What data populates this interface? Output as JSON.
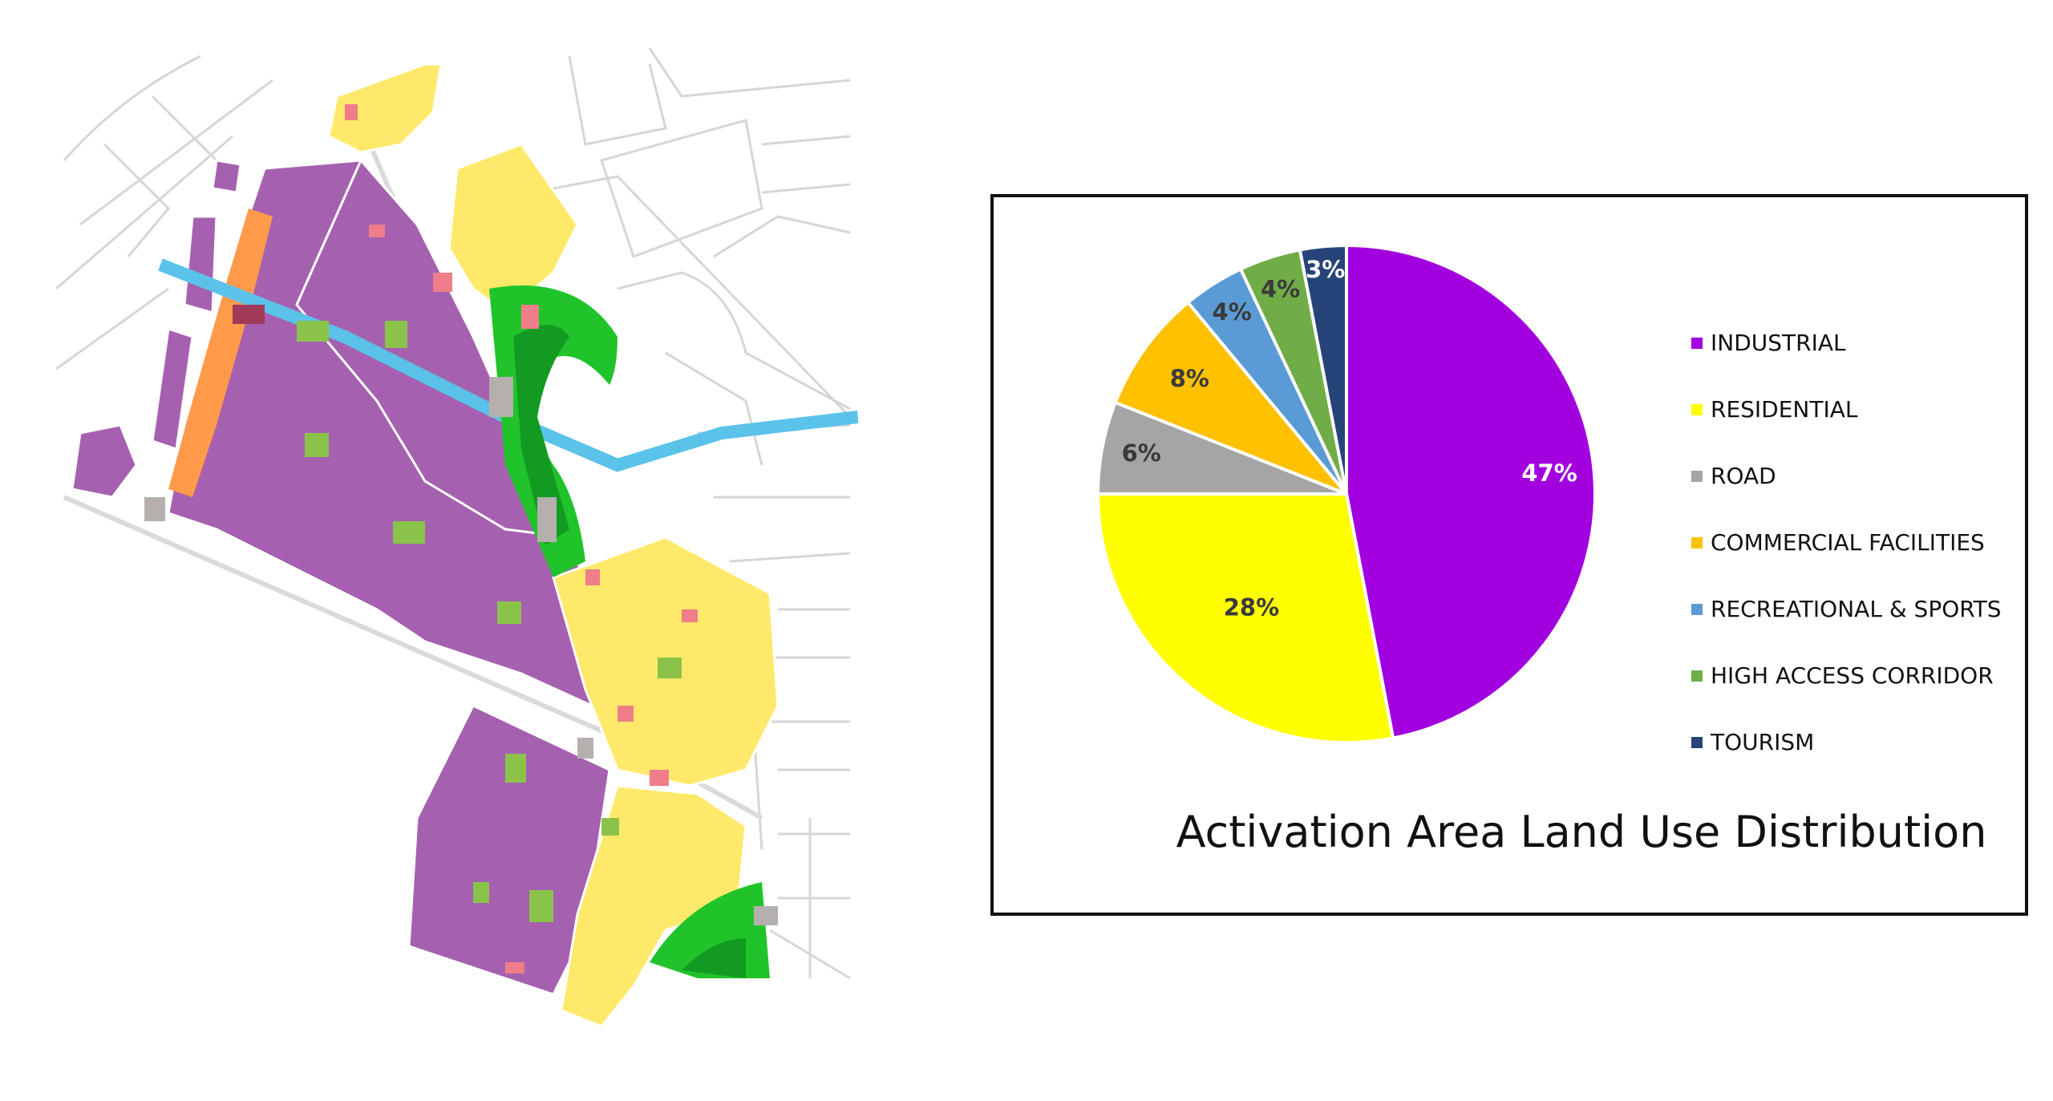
{
  "colors": {
    "industrial": "#A200DE",
    "residential": "#FFFF00",
    "road": "#A5A5A5",
    "commercial": "#FFC000",
    "recreational": "#5B9BD5",
    "corridor": "#70AD47",
    "tourism": "#264478",
    "map_industrial": "#A660B0",
    "map_residential": "#FFE96A",
    "map_commercial": "#FF9A4A",
    "map_park": "#20C42A",
    "map_park_dark": "#129A22",
    "map_river": "#5BC2EA",
    "map_green_patch": "#8BC34A",
    "map_pink_patch": "#F07D8A",
    "map_gray_patch": "#B5B0AE",
    "map_street": "#D6D6D6"
  },
  "map": {
    "label": "Activation Area land use map"
  },
  "chart_data": {
    "type": "pie",
    "title": "Activation Area Land Use Distribution",
    "labels": [
      "INDUSTRIAL",
      "RESIDENTIAL",
      "ROAD",
      "COMMERCIAL FACILITIES",
      "RECREATIONAL & SPORTS",
      "HIGH ACCESS CORRIDOR",
      "TOURISM"
    ],
    "values": [
      47,
      28,
      6,
      8,
      4,
      4,
      3
    ],
    "value_labels": [
      "47%",
      "28%",
      "6%",
      "8%",
      "4%",
      "4%",
      "3%"
    ],
    "colors": [
      "#A200DE",
      "#FFFF00",
      "#A5A5A5",
      "#FFC000",
      "#5B9BD5",
      "#70AD47",
      "#264478"
    ],
    "label_colors": [
      "#ffffff",
      "#3a3a3a",
      "#3a3a3a",
      "#3a3a3a",
      "#3a3a3a",
      "#3a3a3a",
      "#ffffff"
    ],
    "legend_position": "right",
    "start_angle": "12 o'clock",
    "direction": "clockwise"
  }
}
